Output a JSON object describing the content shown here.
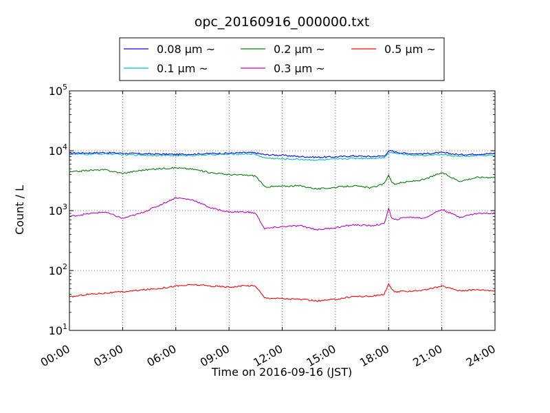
{
  "chart_data": {
    "type": "line",
    "title": "opc_20160916_000000.txt",
    "xlabel": "Time on 2016-09-16 (JST)",
    "ylabel": "Count / L",
    "x_scale": "time",
    "y_scale": "log",
    "xlim": [
      "00:00",
      "24:00"
    ],
    "ylim": [
      10,
      100000
    ],
    "grid": true,
    "grid_style": "dotted",
    "legend_placement": "top-center (above plot)",
    "x_tick_labels": [
      "00:00",
      "03:00",
      "06:00",
      "09:00",
      "12:00",
      "15:00",
      "18:00",
      "21:00",
      "24:00"
    ],
    "y_tick_labels": [
      {
        "base": "10",
        "exp": "1"
      },
      {
        "base": "10",
        "exp": "2"
      },
      {
        "base": "10",
        "exp": "3"
      },
      {
        "base": "10",
        "exp": "4"
      },
      {
        "base": "10",
        "exp": "5"
      }
    ],
    "x": [
      "00:00",
      "01:00",
      "02:00",
      "03:00",
      "04:00",
      "05:00",
      "06:00",
      "07:00",
      "08:00",
      "09:00",
      "10:00",
      "10:30",
      "11:00",
      "12:00",
      "13:00",
      "14:00",
      "15:00",
      "16:00",
      "17:00",
      "17:45",
      "18:00",
      "18:10",
      "18:20",
      "19:00",
      "20:00",
      "21:00",
      "22:00",
      "23:00",
      "24:00"
    ],
    "series": [
      {
        "name": "0.08 μm ~",
        "color": "#0000ff",
        "values": [
          9200,
          9200,
          9300,
          9100,
          8900,
          8800,
          8700,
          8800,
          9000,
          9100,
          9300,
          9200,
          8600,
          8400,
          8000,
          7800,
          7900,
          8200,
          8000,
          8200,
          9800,
          10000,
          9600,
          9000,
          8900,
          9300,
          8600,
          8800,
          9000
        ]
      },
      {
        "name": "0.1 μm ~",
        "color": "#00bfbf",
        "values": [
          8700,
          8700,
          8900,
          8600,
          8500,
          8400,
          8300,
          8400,
          8600,
          8700,
          8900,
          8700,
          7600,
          7300,
          7200,
          7000,
          7200,
          7500,
          7500,
          7700,
          9300,
          9500,
          9100,
          8600,
          8400,
          8700,
          8000,
          8300,
          8400
        ]
      },
      {
        "name": "0.2 μm ~",
        "color": "#008000",
        "values": [
          4400,
          4700,
          4800,
          4200,
          4700,
          5000,
          5200,
          4900,
          4300,
          4000,
          3900,
          3800,
          2500,
          2550,
          2600,
          2300,
          2450,
          2600,
          2400,
          2800,
          4000,
          3000,
          2800,
          3000,
          3300,
          4300,
          3100,
          3600,
          3600
        ]
      },
      {
        "name": "0.3 μm ~",
        "color": "#bf00bf",
        "values": [
          800,
          880,
          950,
          740,
          900,
          1200,
          1650,
          1500,
          1100,
          950,
          950,
          900,
          500,
          540,
          560,
          480,
          520,
          580,
          560,
          600,
          1100,
          750,
          700,
          780,
          750,
          1050,
          780,
          900,
          900
        ]
      },
      {
        "name": "0.5 μm ~",
        "color": "#ff0000",
        "values": [
          36,
          40,
          42,
          44,
          47,
          50,
          55,
          58,
          55,
          53,
          56,
          55,
          35,
          34,
          33,
          31,
          33,
          37,
          37,
          40,
          60,
          48,
          44,
          45,
          47,
          55,
          46,
          48,
          46
        ]
      }
    ]
  }
}
